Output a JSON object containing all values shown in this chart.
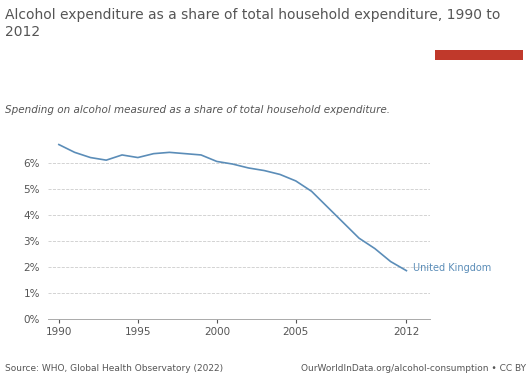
{
  "title": "Alcohol expenditure as a share of total household expenditure, 1990 to\n2012",
  "subtitle": "Spending on alcohol measured as a share of total household expenditure.",
  "source_left": "Source: WHO, Global Health Observatory (2022)",
  "source_right": "OurWorldInData.org/alcohol-consumption • CC BY",
  "series_label": "United Kingdom",
  "line_color": "#5b8db8",
  "years": [
    1990,
    1991,
    1992,
    1993,
    1994,
    1995,
    1996,
    1997,
    1998,
    1999,
    2000,
    2001,
    2002,
    2003,
    2004,
    2005,
    2006,
    2007,
    2008,
    2009,
    2010,
    2011,
    2012
  ],
  "values": [
    6.7,
    6.4,
    6.2,
    6.1,
    6.3,
    6.2,
    6.35,
    6.4,
    6.35,
    6.3,
    6.05,
    5.95,
    5.8,
    5.7,
    5.55,
    5.3,
    4.9,
    4.3,
    3.7,
    3.1,
    2.7,
    2.2,
    1.85
  ],
  "ylim": [
    0,
    7.5
  ],
  "yticks": [
    0,
    1,
    2,
    3,
    4,
    5,
    6
  ],
  "xlim": [
    1989.3,
    2013.5
  ],
  "xticks": [
    1990,
    1995,
    2000,
    2005,
    2012
  ],
  "background_color": "#ffffff",
  "grid_color": "#cccccc",
  "title_fontsize": 10,
  "subtitle_fontsize": 7.5,
  "tick_fontsize": 7.5,
  "source_fontsize": 6.5,
  "owid_box_navy": "#1a3a5c",
  "owid_box_red": "#c0392b",
  "title_color": "#555555",
  "subtitle_color": "#555555",
  "source_color": "#555555",
  "series_label_color": "#5b8db8"
}
